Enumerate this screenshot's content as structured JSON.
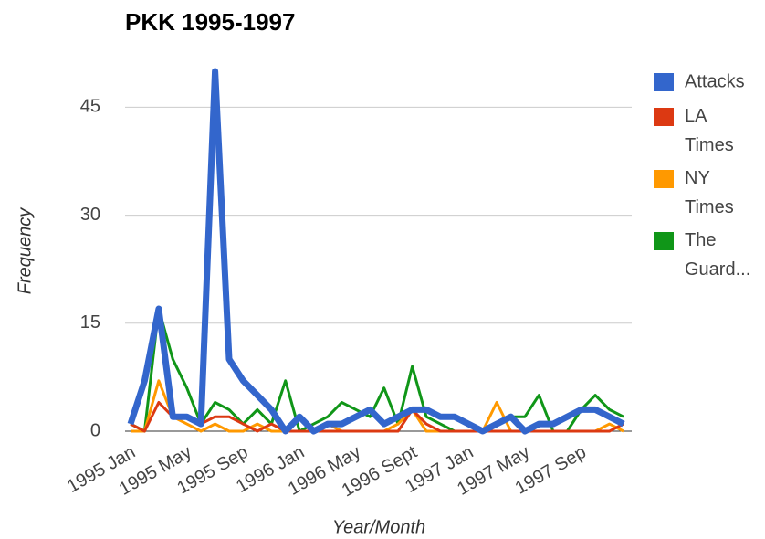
{
  "chart_data": {
    "type": "line",
    "title": "PKK 1995-1997",
    "x_label": "Year/Month",
    "y_label": "Frequency",
    "categories": [
      "1995 Jan",
      null,
      null,
      null,
      "1995 May",
      null,
      null,
      null,
      "1995 Sep",
      null,
      null,
      null,
      "1996 Jan",
      null,
      null,
      null,
      "1996 May",
      null,
      null,
      null,
      "1996 Sept",
      null,
      null,
      null,
      "1997 Jan",
      null,
      null,
      null,
      "1997 May",
      null,
      null,
      null,
      "1997 Sep",
      null,
      null,
      null
    ],
    "series": [
      {
        "name": "Attacks",
        "color": "#3366cc",
        "values": [
          1,
          7,
          17,
          2,
          2,
          1,
          50,
          10,
          7,
          5,
          3,
          0,
          2,
          0,
          1,
          1,
          2,
          3,
          1,
          2,
          3,
          3,
          2,
          2,
          1,
          0,
          1,
          2,
          0,
          1,
          1,
          2,
          3,
          3,
          2,
          1
        ]
      },
      {
        "name": "LA Times",
        "color": "#dc3912",
        "values": [
          1,
          0,
          4,
          2,
          2,
          1,
          2,
          2,
          1,
          0,
          1,
          0,
          0,
          0,
          0,
          0,
          0,
          0,
          0,
          0,
          3,
          1,
          0,
          0,
          0,
          0,
          0,
          0,
          0,
          0,
          0,
          0,
          0,
          0,
          0,
          1
        ]
      },
      {
        "name": "NY Times",
        "color": "#ff9900",
        "values": [
          0,
          0,
          7,
          2,
          1,
          0,
          1,
          0,
          0,
          1,
          0,
          0,
          0,
          0,
          1,
          0,
          0,
          0,
          0,
          1,
          3,
          0,
          0,
          0,
          0,
          0,
          4,
          0,
          0,
          0,
          0,
          0,
          0,
          0,
          1,
          0
        ]
      },
      {
        "name": "The Guard...",
        "color": "#109618",
        "values": [
          1,
          0,
          17,
          10,
          6,
          1,
          4,
          3,
          1,
          3,
          1,
          7,
          0,
          1,
          2,
          4,
          3,
          2,
          6,
          1,
          9,
          2,
          1,
          0,
          0,
          0,
          1,
          2,
          2,
          5,
          0,
          0,
          3,
          5,
          3,
          2
        ]
      }
    ],
    "ylim": [
      0,
      50
    ],
    "yticks": [
      0,
      15,
      30,
      45
    ],
    "grid": true,
    "legend": "right"
  }
}
